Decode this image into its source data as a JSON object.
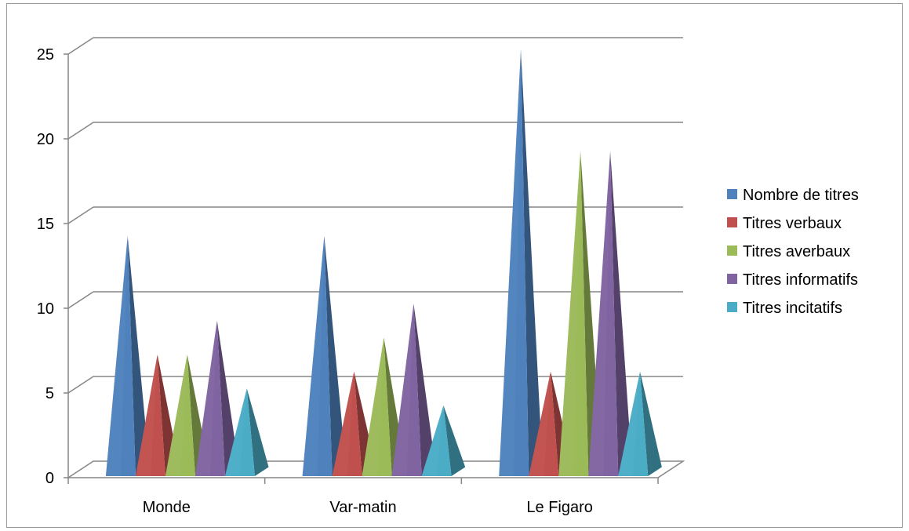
{
  "chart_data": {
    "type": "bar",
    "style": "3d-pyramid-columns",
    "categories": [
      "Monde",
      "Var-matin",
      "Le Figaro"
    ],
    "series": [
      {
        "name": "Nombre de titres",
        "values": [
          14,
          14,
          25
        ],
        "color": "#4F81BD"
      },
      {
        "name": "Titres verbaux",
        "values": [
          7,
          6,
          6
        ],
        "color": "#C0504D"
      },
      {
        "name": "Titres averbaux",
        "values": [
          7,
          8,
          19
        ],
        "color": "#9BBB59"
      },
      {
        "name": "Titres informatifs",
        "values": [
          9,
          10,
          19
        ],
        "color": "#8064A2"
      },
      {
        "name": "Titres incitatifs",
        "values": [
          5,
          4,
          6
        ],
        "color": "#4BACC6"
      }
    ],
    "yticks": [
      "0",
      "5",
      "10",
      "15",
      "20",
      "25"
    ],
    "ylim": [
      0,
      25
    ],
    "grid": true,
    "legend_position": "right",
    "title": "",
    "xlabel": "",
    "ylabel": ""
  }
}
